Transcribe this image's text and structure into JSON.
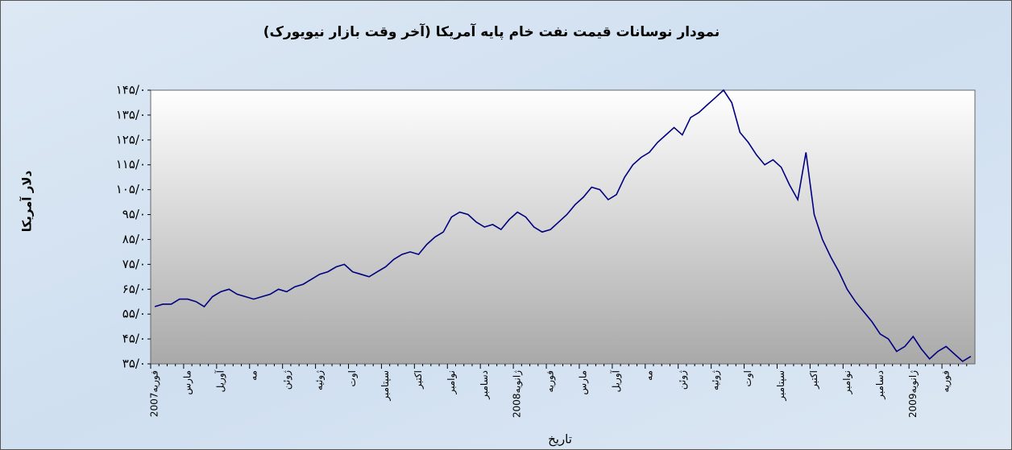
{
  "chart_data": {
    "type": "line",
    "title": "نمودار نوسانات قیمت نفت خام پایه آمریکا (آخر وقت بازار نیویورک)",
    "y_label": "دلار آمریکا",
    "x_label": "تاریخ",
    "categories": [
      "فوریه2007",
      null,
      null,
      null,
      "مارس",
      null,
      null,
      null,
      "آوریل",
      null,
      null,
      null,
      "مه",
      null,
      null,
      null,
      "ژوئن",
      null,
      null,
      null,
      "ژوئیه",
      null,
      null,
      null,
      "اوت",
      null,
      null,
      null,
      "سپتامبر",
      null,
      null,
      null,
      "اکتبر",
      null,
      null,
      null,
      "نوامبر",
      null,
      null,
      null,
      "دسامبر",
      null,
      null,
      null,
      "ژانویه2008",
      null,
      null,
      null,
      "فوریه",
      null,
      null,
      null,
      "مارس",
      null,
      null,
      null,
      "آوریل",
      null,
      null,
      null,
      "مه",
      null,
      null,
      null,
      "ژوئن",
      null,
      null,
      null,
      "ژوئیه",
      null,
      null,
      null,
      "اوت",
      null,
      null,
      null,
      "سپتامبر",
      null,
      null,
      null,
      "اکتبر",
      null,
      null,
      null,
      "نوامبر",
      null,
      null,
      null,
      "دسامبر",
      null,
      null,
      null,
      "ژانویه2009",
      null,
      null,
      null,
      "فوریه",
      null,
      null,
      null
    ],
    "values": [
      58,
      59,
      59,
      61,
      61,
      60,
      58,
      62,
      64,
      65,
      63,
      62,
      61,
      62,
      63,
      65,
      64,
      66,
      67,
      69,
      71,
      72,
      74,
      75,
      72,
      71,
      70,
      72,
      74,
      77,
      79,
      80,
      79,
      83,
      86,
      88,
      94,
      96,
      95,
      92,
      90,
      91,
      89,
      93,
      96,
      94,
      90,
      88,
      89,
      92,
      95,
      99,
      102,
      106,
      105,
      101,
      103,
      110,
      115,
      118,
      120,
      124,
      127,
      130,
      127,
      134,
      136,
      139,
      142,
      145,
      140,
      128,
      124,
      119,
      115,
      117,
      114,
      107,
      101,
      120,
      95,
      85,
      78,
      72,
      65,
      60,
      56,
      52,
      47,
      45,
      40,
      42,
      46,
      41,
      37,
      40,
      42,
      39,
      36,
      38
    ],
    "color": "#000080",
    "ylim": [
      35,
      145
    ],
    "yticks": [
      {
        "value": 35,
        "label": "۳۵/۰"
      },
      {
        "value": 45,
        "label": "۴۵/۰"
      },
      {
        "value": 55,
        "label": "۵۵/۰"
      },
      {
        "value": 65,
        "label": "۶۵/۰"
      },
      {
        "value": 75,
        "label": "۷۵/۰"
      },
      {
        "value": 85,
        "label": "۸۵/۰"
      },
      {
        "value": 95,
        "label": "۹۵/۰"
      },
      {
        "value": 105,
        "label": "۱۰۵/۰"
      },
      {
        "value": 115,
        "label": "۱۱۵/۰"
      },
      {
        "value": 125,
        "label": "۱۲۵/۰"
      },
      {
        "value": 135,
        "label": "۱۳۵/۰"
      },
      {
        "value": 145,
        "label": "۱۴۵/۰"
      }
    ]
  }
}
